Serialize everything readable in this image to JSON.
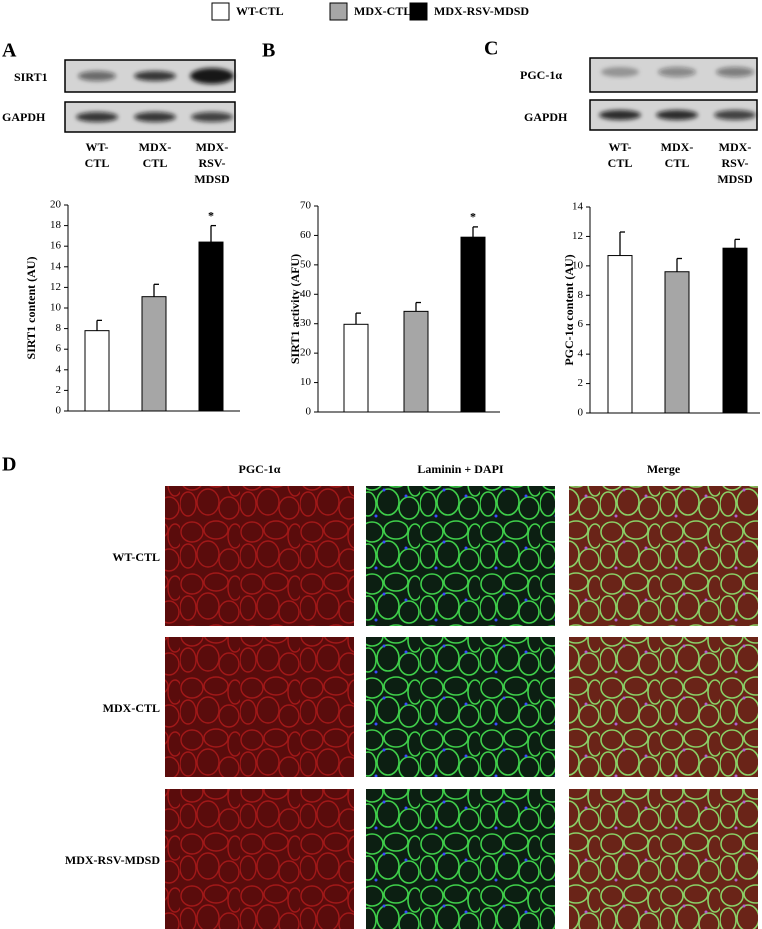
{
  "legend": [
    {
      "name": "WT-CTL",
      "color": "#ffffff"
    },
    {
      "name": "MDX-CTL",
      "color": "#a6a6a6"
    },
    {
      "name": "MDX-RSV-MDSD",
      "color": "#000000"
    }
  ],
  "panels": [
    "A",
    "B",
    "C",
    "D"
  ],
  "blots": [
    {
      "rows": [
        "SIRT1",
        "GAPDH"
      ],
      "lanes": [
        [
          "WT-",
          "CTL"
        ],
        [
          "MDX-",
          "CTL"
        ],
        [
          "MDX-",
          "RSV-",
          "MDSD"
        ]
      ]
    },
    {
      "rows": [
        "PGC-1α",
        "GAPDH"
      ],
      "lanes": [
        [
          "WT-",
          "CTL"
        ],
        [
          "MDX-",
          "CTL"
        ],
        [
          "MDX-",
          "RSV-",
          "MDSD"
        ]
      ]
    }
  ],
  "chart_data": [
    {
      "type": "bar",
      "y_label": "SIRT1 content (AU)",
      "values": [
        7.8,
        11.1,
        16.4
      ],
      "errors": [
        1.0,
        1.2,
        1.6
      ],
      "ylim": [
        0,
        20
      ],
      "yticks": [
        0,
        2,
        4,
        6,
        8,
        10,
        12,
        14,
        16,
        18,
        20
      ],
      "annotations": [
        {
          "text": "*",
          "bar": 2
        }
      ]
    },
    {
      "type": "bar",
      "y_label": "SIRT1 activity (AFU)",
      "values": [
        29.8,
        34.2,
        59.4
      ],
      "errors": [
        3.8,
        3.0,
        3.5
      ],
      "ylim": [
        0,
        70
      ],
      "yticks": [
        0,
        10,
        20,
        30,
        40,
        50,
        60,
        70
      ],
      "annotations": [
        {
          "text": "*",
          "bar": 2
        }
      ]
    },
    {
      "type": "bar",
      "y_label": "PGC-1α content (AU)",
      "values": [
        10.7,
        9.6,
        11.2
      ],
      "errors": [
        1.6,
        0.9,
        0.6
      ],
      "ylim": [
        0,
        14
      ],
      "yticks": [
        0,
        2,
        4,
        6,
        8,
        10,
        12,
        14
      ],
      "annotations": []
    }
  ],
  "microscopy": {
    "columns": [
      "PGC-1α",
      "Laminin + DAPI",
      "Merge"
    ],
    "rows": [
      "WT-CTL",
      "MDX-CTL",
      "MDX-RSV-MDSD"
    ]
  }
}
